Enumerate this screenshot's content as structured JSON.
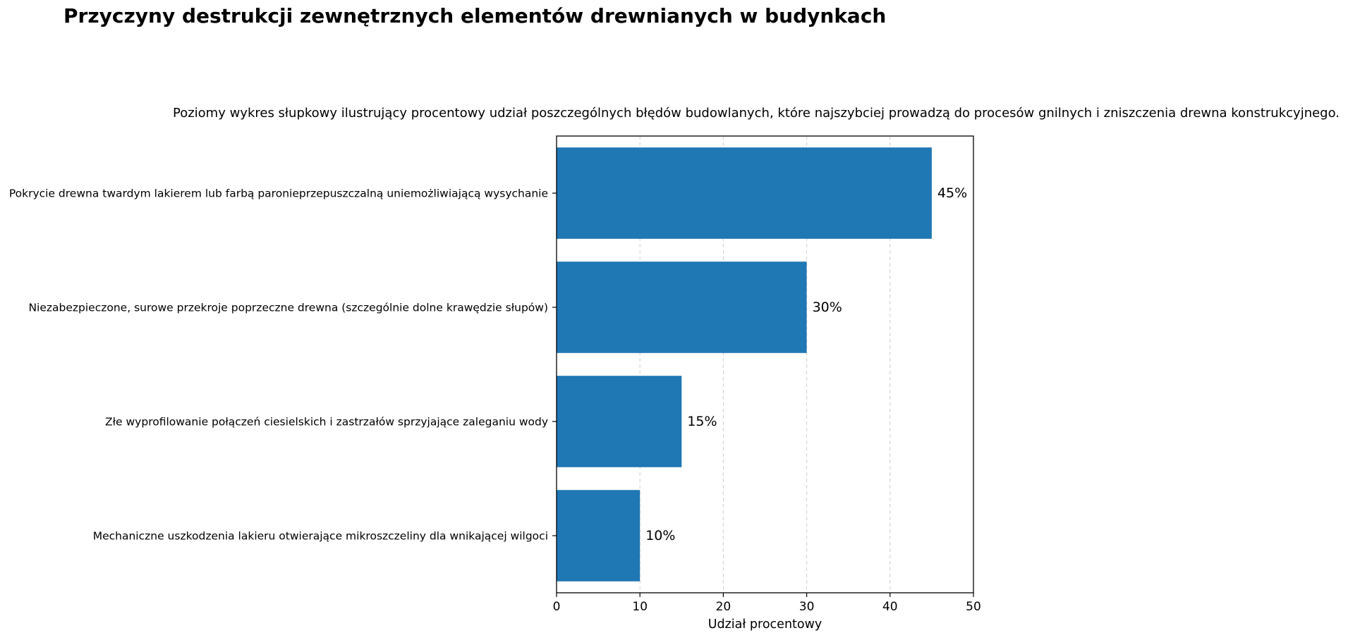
{
  "chart_data": {
    "type": "bar",
    "orientation": "horizontal",
    "title": "Przyczyny destrukcji zewnętrznych elementów drewnianych w budynkach",
    "subtitle": "Poziomy wykres słupkowy ilustrujący procentowy udział poszczególnych błędów budowlanych, które najszybciej prowadzą do procesów gnilnych i zniszczenia drewna konstrukcyjnego.",
    "categories": [
      "Pokrycie drewna twardym lakierem lub farbą paronieprzepuszczalną uniemożliwiającą wysychanie",
      "Niezabezpieczone, surowe przekroje poprzeczne drewna (szczególnie dolne krawędzie słupów)",
      "Złe wyprofilowanie połączeń ciesielskich i zastrzałów sprzyjające zaleganiu wody",
      "Mechaniczne uszkodzenia lakieru otwierające mikroszczeliny dla wnikającej wilgoci"
    ],
    "values": [
      45,
      30,
      15,
      10
    ],
    "data_labels": [
      "45%",
      "30%",
      "15%",
      "10%"
    ],
    "xlabel": "Udział procentowy",
    "ylabel": "",
    "xlim": [
      0,
      50
    ],
    "xticks": [
      0,
      10,
      20,
      30,
      40,
      50
    ],
    "grid": "x-dashed",
    "bar_color": "#1f77b4",
    "grid_color": "#cccccc"
  }
}
